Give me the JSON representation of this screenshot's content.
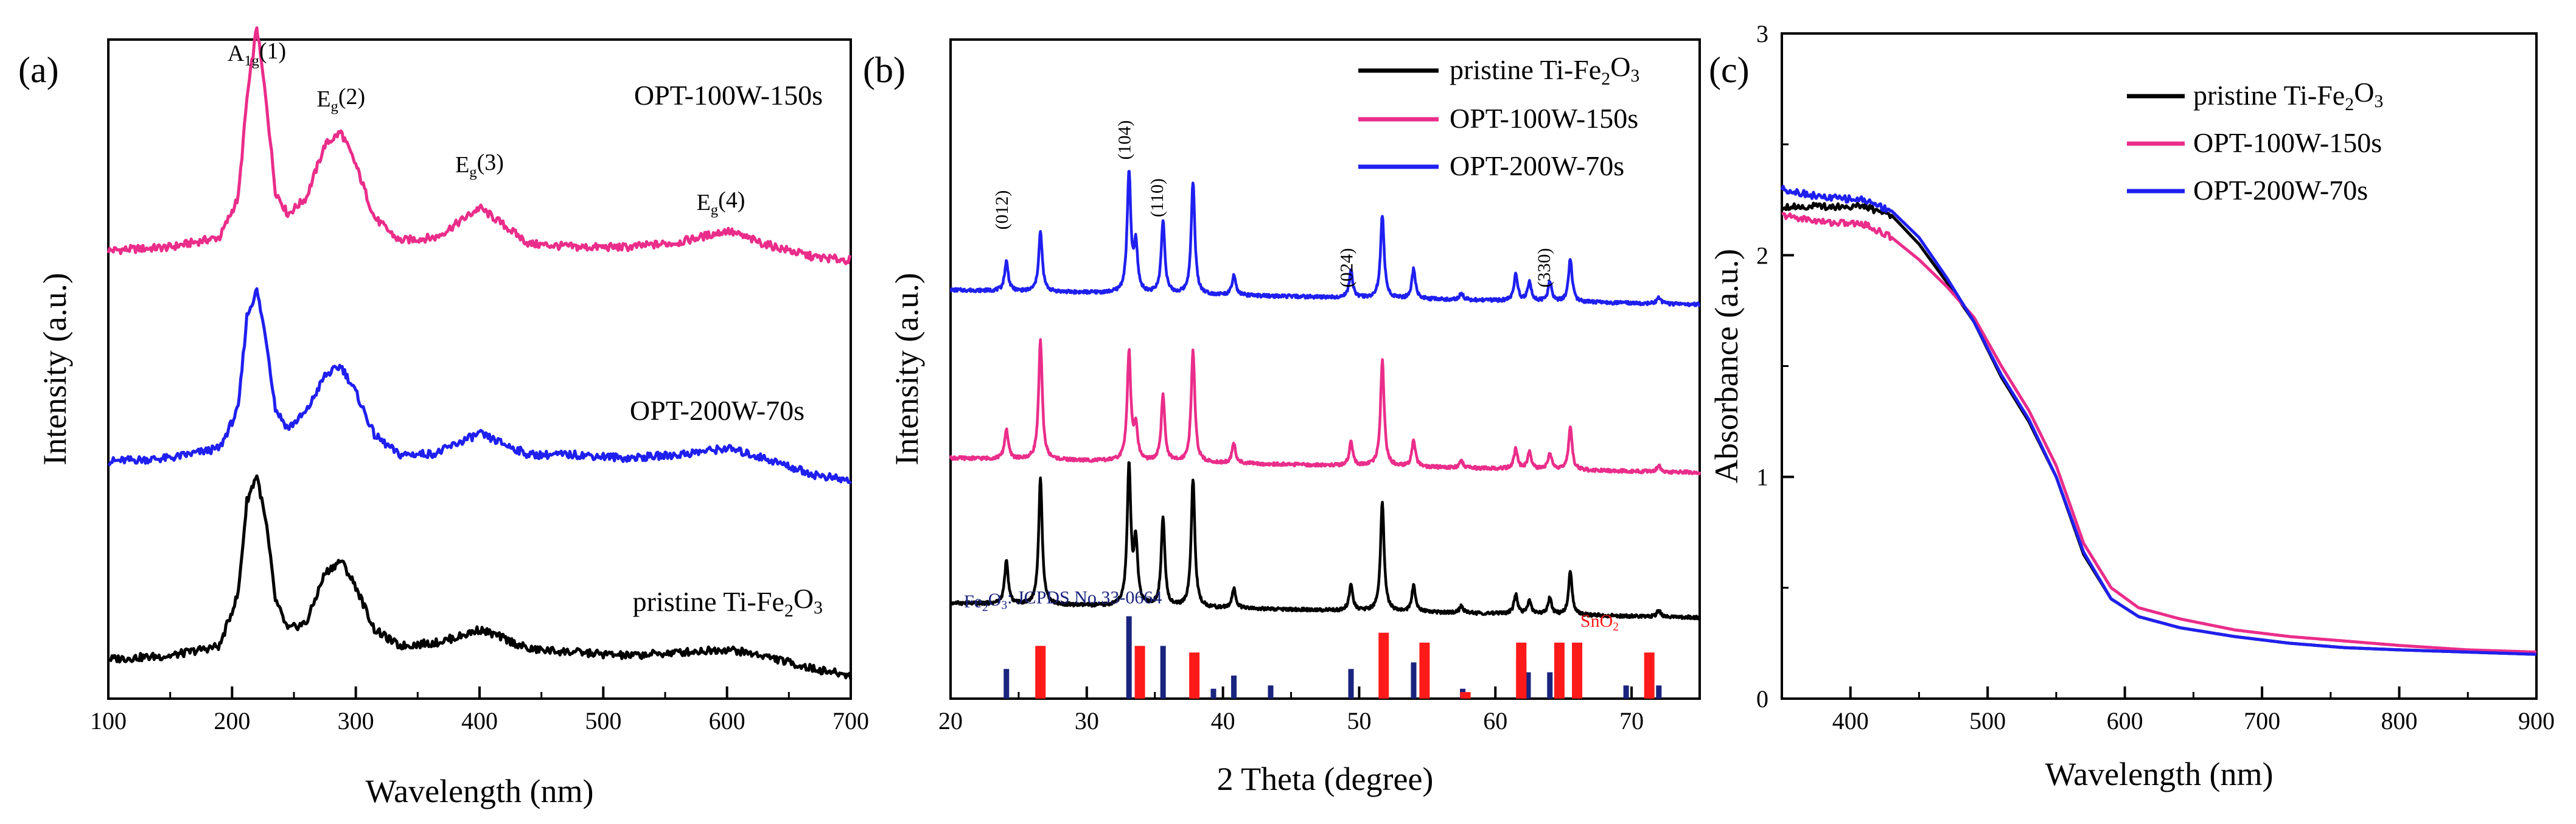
{
  "chart_data": [
    {
      "id": "a",
      "type": "line",
      "panel_label": "(a)",
      "xlabel": "Wavelength (nm)",
      "ylabel": "Intensity (a.u.)",
      "xlim": [
        100,
        700
      ],
      "xticks": [
        "100",
        "200",
        "300",
        "400",
        "500",
        "600",
        "700"
      ],
      "ylim": [
        0,
        10
      ],
      "peak_labels": [
        {
          "base": "A",
          "sub": "1g",
          "suffix": "(1)",
          "x": 220
        },
        {
          "base": "E",
          "sub": "g",
          "suffix": "(2)",
          "x": 288
        },
        {
          "base": "E",
          "sub": "g",
          "suffix": "(3)",
          "x": 400
        },
        {
          "base": "E",
          "sub": "g",
          "suffix": "(4)",
          "x": 595
        }
      ],
      "series": [
        {
          "name_html": "OPT-100W-150s",
          "color": "#ea2d8a",
          "offset": 6.8,
          "x": [
            100,
            150,
            190,
            205,
            212,
            220,
            228,
            235,
            245,
            260,
            275,
            288,
            300,
            315,
            335,
            365,
            385,
            400,
            415,
            440,
            480,
            520,
            560,
            600,
            630,
            670,
            700
          ],
          "y": [
            0.0,
            0.05,
            0.2,
            0.8,
            2.3,
            3.4,
            2.2,
            0.9,
            0.55,
            0.8,
            1.6,
            1.8,
            1.3,
            0.5,
            0.15,
            0.2,
            0.45,
            0.65,
            0.45,
            0.1,
            0.05,
            0.05,
            0.12,
            0.3,
            0.1,
            -0.1,
            -0.15
          ]
        },
        {
          "name_html": "OPT-200W-70s",
          "color": "#1f1ff0",
          "offset": 3.6,
          "x": [
            100,
            150,
            190,
            205,
            212,
            220,
            228,
            235,
            245,
            260,
            275,
            288,
            300,
            315,
            335,
            365,
            385,
            400,
            415,
            440,
            480,
            520,
            560,
            600,
            630,
            670,
            700
          ],
          "y": [
            0.0,
            0.05,
            0.2,
            0.8,
            2.2,
            2.6,
            1.8,
            0.8,
            0.5,
            0.75,
            1.3,
            1.45,
            1.05,
            0.4,
            0.1,
            0.12,
            0.3,
            0.42,
            0.3,
            0.1,
            0.1,
            0.05,
            0.1,
            0.2,
            0.05,
            -0.2,
            -0.3
          ]
        },
        {
          "name_html": "pristine Ti-Fe2O3",
          "color": "#000000",
          "offset": 0.6,
          "x": [
            100,
            150,
            190,
            205,
            212,
            220,
            228,
            235,
            245,
            260,
            275,
            288,
            300,
            315,
            335,
            365,
            385,
            400,
            415,
            440,
            480,
            520,
            560,
            600,
            630,
            670,
            700
          ],
          "y": [
            0.0,
            0.05,
            0.2,
            1.0,
            2.4,
            2.8,
            2.0,
            0.9,
            0.45,
            0.55,
            1.3,
            1.5,
            1.1,
            0.45,
            0.2,
            0.25,
            0.35,
            0.45,
            0.35,
            0.15,
            0.1,
            0.05,
            0.1,
            0.15,
            0.05,
            -0.15,
            -0.25
          ]
        }
      ],
      "series_labels": [
        {
          "text": "OPT-100W-150s",
          "series": 0
        },
        {
          "text": "OPT-200W-70s",
          "series": 1
        },
        {
          "base": "pristine Ti-Fe",
          "sub1": "2",
          "mid": "O",
          "sub2": "3",
          "series": 2
        }
      ]
    },
    {
      "id": "b",
      "type": "line",
      "panel_label": "(b)",
      "xlabel": "2 Theta (degree)",
      "ylabel": "Intensity (a.u.)",
      "xlim": [
        20,
        75
      ],
      "xticks": [
        "20",
        "30",
        "40",
        "50",
        "60",
        "70"
      ],
      "ylim": [
        0,
        10
      ],
      "miller": [
        {
          "text": "(012)",
          "x": 24.2
        },
        {
          "text": "(104)",
          "x": 33.2
        },
        {
          "text": "(110)",
          "x": 35.6
        },
        {
          "text": "(024)",
          "x": 49.5
        },
        {
          "text": "(330)",
          "x": 64.0
        }
      ],
      "ref_label_fe": {
        "base": "Fe",
        "sub1": "2",
        "mid": "O",
        "sub2": "3",
        "rest": ": JCPDS No.33-0664"
      },
      "ref_label_sn": {
        "base": "SnO",
        "sub1": "2"
      },
      "fe2o3_ref": {
        "color": "#1a237e",
        "x": [
          24.1,
          33.1,
          35.6,
          39.3,
          40.8,
          43.5,
          49.4,
          54.0,
          57.6,
          62.4,
          64.0,
          66.0,
          69.6,
          72.0
        ],
        "h": [
          0.45,
          1.25,
          0.8,
          0.15,
          0.35,
          0.2,
          0.45,
          0.55,
          0.15,
          0.4,
          0.4,
          0.2,
          0.2,
          0.2
        ]
      },
      "sno2_ref": {
        "color": "#ff1a1a",
        "x": [
          26.6,
          33.9,
          37.9,
          51.8,
          54.8,
          57.8,
          61.9,
          61.9,
          64.7,
          66.0,
          71.3
        ],
        "h": [
          0.8,
          0.8,
          0.7,
          1.0,
          0.85,
          0.1,
          0.6,
          0.85,
          0.85,
          0.85,
          0.7
        ]
      },
      "series": [
        {
          "name_html": "OPT-200W-70s",
          "color": "#1f1ff0",
          "offset": 6.2,
          "peaks": [
            [
              24.1,
              0.45
            ],
            [
              26.6,
              0.9
            ],
            [
              33.1,
              1.8
            ],
            [
              33.6,
              0.7
            ],
            [
              35.6,
              1.1
            ],
            [
              37.8,
              1.7
            ],
            [
              40.8,
              0.3
            ],
            [
              49.4,
              0.4
            ],
            [
              51.7,
              1.25
            ],
            [
              54.0,
              0.45
            ],
            [
              57.5,
              0.1
            ],
            [
              61.5,
              0.4
            ],
            [
              62.5,
              0.3
            ],
            [
              64.0,
              0.3
            ],
            [
              65.5,
              0.65
            ],
            [
              72.0,
              0.1
            ]
          ]
        },
        {
          "name_html": "OPT-100W-150s",
          "color": "#ea2d8a",
          "offset": 3.65,
          "peaks": [
            [
              24.1,
              0.45
            ],
            [
              26.6,
              1.8
            ],
            [
              33.1,
              1.65
            ],
            [
              33.6,
              0.5
            ],
            [
              35.6,
              1.0
            ],
            [
              37.8,
              1.7
            ],
            [
              40.8,
              0.3
            ],
            [
              49.4,
              0.35
            ],
            [
              51.7,
              1.6
            ],
            [
              54.0,
              0.4
            ],
            [
              57.5,
              0.1
            ],
            [
              61.5,
              0.3
            ],
            [
              62.5,
              0.25
            ],
            [
              64.0,
              0.25
            ],
            [
              65.5,
              0.65
            ],
            [
              72.0,
              0.1
            ]
          ]
        },
        {
          "name_html": "pristine Ti-Fe2O3",
          "color": "#000000",
          "offset": 1.45,
          "peaks": [
            [
              24.1,
              0.65
            ],
            [
              26.6,
              1.9
            ],
            [
              33.1,
              2.1
            ],
            [
              33.6,
              0.95
            ],
            [
              35.6,
              1.35
            ],
            [
              37.8,
              1.95
            ],
            [
              40.8,
              0.3
            ],
            [
              49.4,
              0.4
            ],
            [
              51.7,
              1.65
            ],
            [
              54.0,
              0.4
            ],
            [
              57.5,
              0.1
            ],
            [
              61.5,
              0.3
            ],
            [
              62.5,
              0.2
            ],
            [
              64.0,
              0.25
            ],
            [
              65.5,
              0.65
            ],
            [
              72.0,
              0.1
            ]
          ]
        }
      ],
      "legend": [
        {
          "base": "pristine Ti-Fe",
          "sub1": "2",
          "mid": "O",
          "sub2": "3",
          "color": "#000000"
        },
        {
          "base": "OPT-100W-150s",
          "color": "#ea2d8a"
        },
        {
          "base": "OPT-200W-70s",
          "color": "#1f1ff0"
        }
      ]
    },
    {
      "id": "c",
      "type": "line",
      "panel_label": "(c)",
      "xlabel": "Wavelength (nm)",
      "ylabel": "Absorbance (a.u.)",
      "xlim": [
        350,
        900
      ],
      "xticks": [
        "400",
        "500",
        "600",
        "700",
        "800",
        "900"
      ],
      "ylim": [
        0,
        3
      ],
      "yticks": [
        "0",
        "1",
        "2",
        "3"
      ],
      "series": [
        {
          "name_html": "pristine Ti-Fe2O3",
          "color": "#000000",
          "x": [
            350,
            380,
            410,
            430,
            450,
            470,
            490,
            510,
            530,
            550,
            570,
            590,
            610,
            640,
            680,
            720,
            760,
            800,
            850,
            900
          ],
          "y": [
            2.22,
            2.22,
            2.22,
            2.18,
            2.05,
            1.88,
            1.7,
            1.45,
            1.25,
            1.0,
            0.65,
            0.45,
            0.37,
            0.32,
            0.28,
            0.25,
            0.23,
            0.22,
            0.21,
            0.2
          ]
        },
        {
          "name_html": "OPT-100W-150s",
          "color": "#ea2d8a",
          "x": [
            350,
            380,
            410,
            430,
            450,
            470,
            490,
            510,
            530,
            550,
            570,
            590,
            610,
            640,
            680,
            720,
            760,
            800,
            850,
            900
          ],
          "y": [
            2.18,
            2.15,
            2.14,
            2.08,
            1.98,
            1.86,
            1.72,
            1.5,
            1.3,
            1.05,
            0.7,
            0.5,
            0.41,
            0.36,
            0.31,
            0.28,
            0.26,
            0.24,
            0.22,
            0.21
          ]
        },
        {
          "name_html": "OPT-200W-70s",
          "color": "#1f1ff0",
          "x": [
            350,
            380,
            410,
            430,
            450,
            470,
            490,
            510,
            530,
            550,
            570,
            590,
            610,
            640,
            680,
            720,
            760,
            800,
            850,
            900
          ],
          "y": [
            2.3,
            2.26,
            2.25,
            2.2,
            2.08,
            1.9,
            1.7,
            1.46,
            1.26,
            1.0,
            0.66,
            0.45,
            0.37,
            0.32,
            0.28,
            0.25,
            0.23,
            0.22,
            0.21,
            0.2
          ]
        }
      ],
      "legend": [
        {
          "base": "pristine Ti-Fe",
          "sub1": "2",
          "mid": "O",
          "sub2": "3",
          "color": "#000000"
        },
        {
          "base": "OPT-100W-150s",
          "color": "#ea2d8a"
        },
        {
          "base": "OPT-200W-70s",
          "color": "#1f1ff0"
        }
      ]
    }
  ]
}
